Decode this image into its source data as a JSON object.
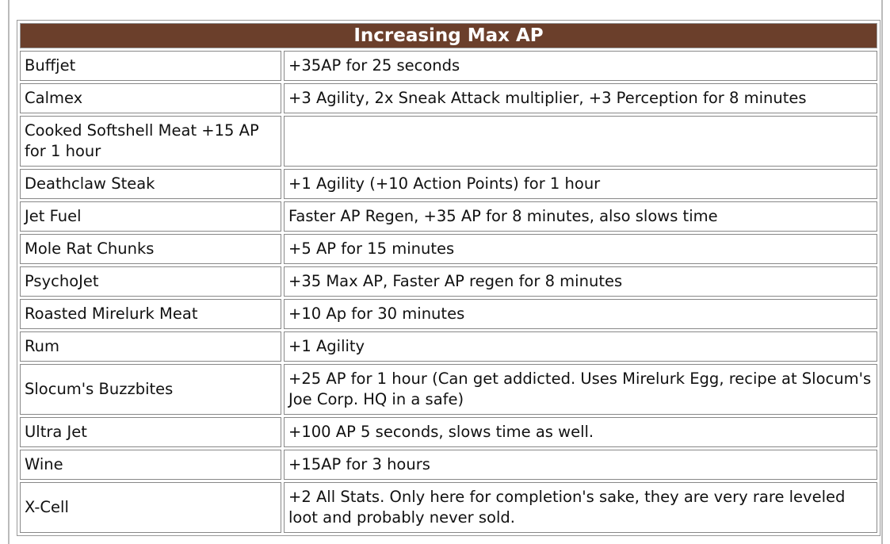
{
  "table": {
    "title": "Increasing Max AP",
    "rows": [
      [
        "Buffjet",
        "+35AP for 25 seconds"
      ],
      [
        "Calmex",
        "+3 Agility, 2x Sneak Attack multiplier, +3 Perception for 8 minutes"
      ],
      [
        "Cooked Softshell Meat +15 AP for 1 hour"
      ],
      [
        "Deathclaw Steak",
        "+1 Agility (+10 Action Points) for 1 hour"
      ],
      [
        "Jet Fuel",
        "Faster AP Regen, +35 AP for 8 minutes, also slows time"
      ],
      [
        "Mole Rat Chunks",
        "+5 AP for 15 minutes"
      ],
      [
        "PsychoJet",
        "+35 Max AP, Faster AP regen for 8 minutes"
      ],
      [
        "Roasted Mirelurk Meat",
        "+10 Ap for 30 minutes"
      ],
      [
        "Rum",
        "+1 Agility"
      ],
      [
        "Slocum's Buzzbites",
        "+25 AP for 1 hour (Can get addicted. Uses Mirelurk Egg, recipe at Slocum's Joe Corp. HQ in a safe)"
      ],
      [
        "Ultra Jet",
        "+100 AP 5 seconds, slows time as well."
      ],
      [
        "Wine",
        "+15AP for 3 hours"
      ],
      [
        "X-Cell",
        "+2 All Stats. Only here for completion's sake, they are very rare leveled loot and probably never sold."
      ]
    ]
  }
}
